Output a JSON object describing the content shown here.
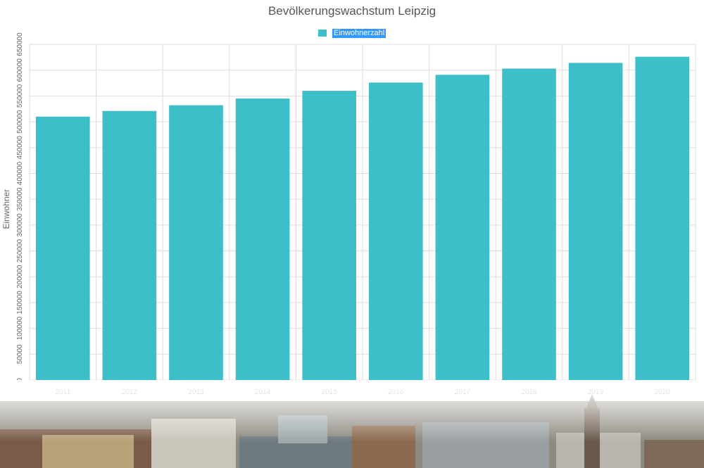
{
  "chart_data": {
    "type": "bar",
    "title": "Bevölkerungswachstum Leipzig",
    "xlabel": "",
    "ylabel": "Einwohner",
    "categories": [
      "2011",
      "2012",
      "2013",
      "2014",
      "2015",
      "2016",
      "2017",
      "2018",
      "2019",
      "2020"
    ],
    "series": [
      {
        "name": "Einwohnerzahl",
        "values": [
          510000,
          521000,
          532000,
          545000,
          560000,
          576000,
          591000,
          603000,
          614000,
          626000
        ],
        "color": "#3dbfc9"
      }
    ],
    "ylim": [
      0,
      650000
    ],
    "yticks": [
      "0",
      "50000",
      "100000",
      "150000",
      "200000",
      "250000",
      "300000",
      "350000",
      "400000",
      "450000",
      "500000",
      "550000",
      "600000",
      "650000"
    ],
    "grid": true,
    "legend": "top-center"
  }
}
